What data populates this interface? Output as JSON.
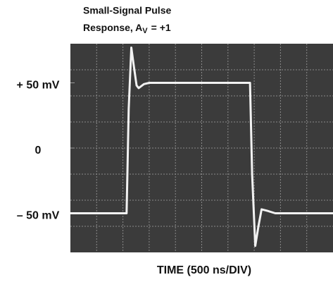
{
  "chart_data": {
    "type": "line",
    "title": {
      "line1": "Small-Signal Pulse",
      "line2": "Response, A",
      "subscript": "V",
      "line2_end": "= +1"
    },
    "x_label": "TIME (500 ns/DIV)",
    "x": [
      0,
      1060,
      1070,
      1110,
      1160,
      1200,
      1260,
      1300,
      1400,
      1500,
      3400,
      3420,
      3460,
      3520,
      3580,
      3640,
      3740,
      3900,
      5000
    ],
    "values": [
      -50,
      -50,
      -50,
      30,
      77,
      65,
      48,
      46,
      49,
      50,
      50,
      50,
      -20,
      -75,
      -60,
      -47,
      -48,
      -50,
      -50
    ],
    "color": "#f2f2f2",
    "xlim": [
      0,
      5000
    ],
    "ylim": [
      -80,
      80
    ],
    "yticks": [
      {
        "value": 50,
        "label": "+ 50 mV"
      },
      0,
      {
        "value": -50,
        "label": "– 50 mV"
      }
    ],
    "grid_x": [
      500,
      1000,
      1500,
      2000,
      2500,
      3000,
      3500,
      4000,
      4500
    ],
    "grid_y": [
      -60,
      -40,
      -20,
      0,
      20,
      40,
      60
    ],
    "grid": true
  }
}
